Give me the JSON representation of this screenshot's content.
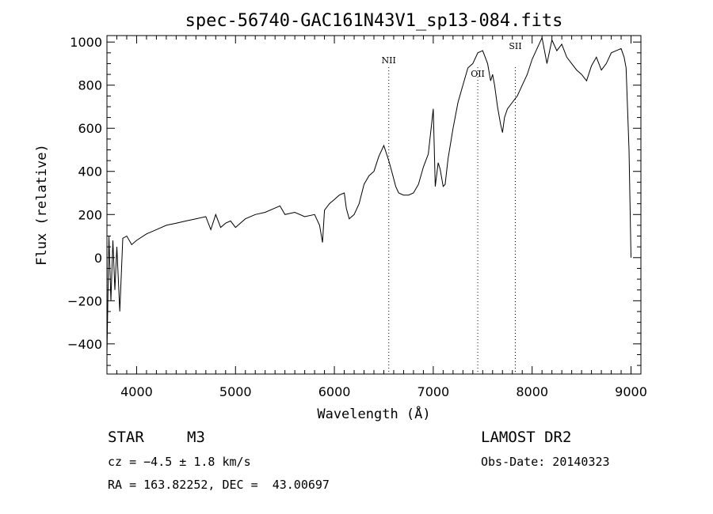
{
  "chart_data": {
    "type": "line",
    "title": "spec-56740-GAC161N43V1_sp13-084.fits",
    "xlabel": "Wavelength (Å)",
    "ylabel": "Flux (relative)",
    "xlim": [
      3700,
      9100
    ],
    "ylim": [
      -540,
      1030
    ],
    "xticks": [
      4000,
      5000,
      6000,
      7000,
      8000,
      9000
    ],
    "yticks": [
      -400,
      -200,
      0,
      200,
      400,
      600,
      800,
      1000
    ],
    "line_markers": [
      {
        "label": "NII",
        "x": 6550
      },
      {
        "label": "OII",
        "x": 7450
      },
      {
        "label": "SII",
        "x": 7830
      }
    ],
    "series": [
      {
        "x": [
          3700,
          3720,
          3740,
          3760,
          3780,
          3800,
          3830,
          3860,
          3900,
          3950,
          4000,
          4100,
          4200,
          4300,
          4400,
          4500,
          4600,
          4700,
          4750,
          4800,
          4850,
          4900,
          4950,
          5000,
          5100,
          5200,
          5300,
          5400,
          5450,
          5500,
          5600,
          5700,
          5800,
          5850,
          5880,
          5900,
          5950,
          6000,
          6050,
          6100,
          6120,
          6150,
          6200,
          6250,
          6300,
          6350,
          6400,
          6450,
          6500,
          6550,
          6580,
          6620,
          6650,
          6700,
          6750,
          6800,
          6850,
          6900,
          6950,
          7000,
          7020,
          7050,
          7070,
          7100,
          7120,
          7150,
          7200,
          7250,
          7300,
          7350,
          7400,
          7450,
          7500,
          7550,
          7580,
          7600,
          7620,
          7650,
          7680,
          7700,
          7720,
          7750,
          7800,
          7850,
          7900,
          7950,
          8000,
          8050,
          8100,
          8150,
          8200,
          8250,
          8300,
          8350,
          8400,
          8450,
          8500,
          8550,
          8600,
          8650,
          8700,
          8750,
          8800,
          8850,
          8900,
          8930,
          8950,
          8980,
          9000
        ],
        "y": [
          -450,
          100,
          -200,
          80,
          -150,
          50,
          -250,
          90,
          100,
          60,
          80,
          110,
          130,
          150,
          160,
          170,
          180,
          190,
          130,
          200,
          140,
          160,
          170,
          140,
          180,
          200,
          210,
          230,
          240,
          200,
          210,
          190,
          200,
          150,
          70,
          220,
          250,
          270,
          290,
          300,
          230,
          180,
          200,
          250,
          340,
          380,
          400,
          470,
          520,
          450,
          400,
          330,
          300,
          290,
          290,
          300,
          340,
          420,
          480,
          690,
          330,
          440,
          410,
          330,
          340,
          460,
          600,
          720,
          800,
          880,
          900,
          950,
          960,
          900,
          820,
          850,
          800,
          700,
          620,
          580,
          650,
          690,
          720,
          750,
          800,
          850,
          920,
          970,
          1020,
          900,
          1010,
          960,
          990,
          930,
          900,
          870,
          850,
          820,
          890,
          930,
          870,
          900,
          950,
          960,
          970,
          930,
          880,
          500,
          0
        ]
      }
    ]
  },
  "info": {
    "object_type": "STAR",
    "subclass": "M3",
    "survey": "LAMOST DR2",
    "velocity": "cz = −4.5 ± 1.8 km/s",
    "obs_date": "Obs-Date: 20140323",
    "coords": "RA = 163.82252, DEC =  43.00697"
  }
}
